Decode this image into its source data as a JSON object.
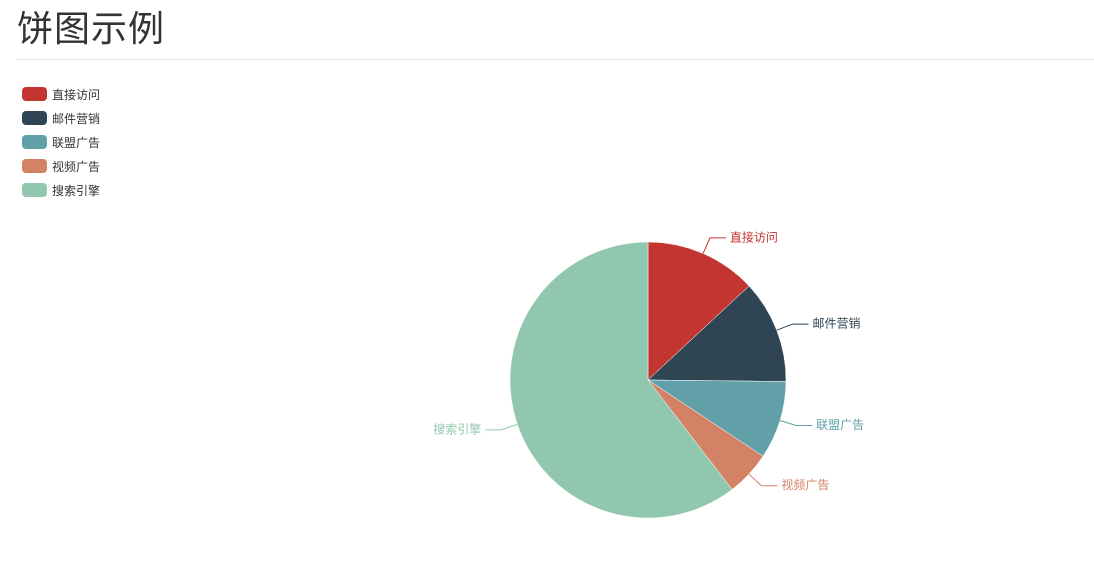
{
  "page": {
    "title": "饼图示例"
  },
  "chart_data": {
    "type": "pie",
    "title": "",
    "legend_position": "top-left",
    "labels_outside": true,
    "start_angle_deg": 90,
    "direction": "clockwise",
    "slices": [
      {
        "name": "直接访问",
        "value": 335,
        "color": "#c23531"
      },
      {
        "name": "邮件营销",
        "value": 310,
        "color": "#2f4554"
      },
      {
        "name": "联盟广告",
        "value": 234,
        "color": "#61a0a8"
      },
      {
        "name": "视频广告",
        "value": 135,
        "color": "#d48265"
      },
      {
        "name": "搜索引擎",
        "value": 1548,
        "color": "#91c7ae"
      }
    ]
  }
}
